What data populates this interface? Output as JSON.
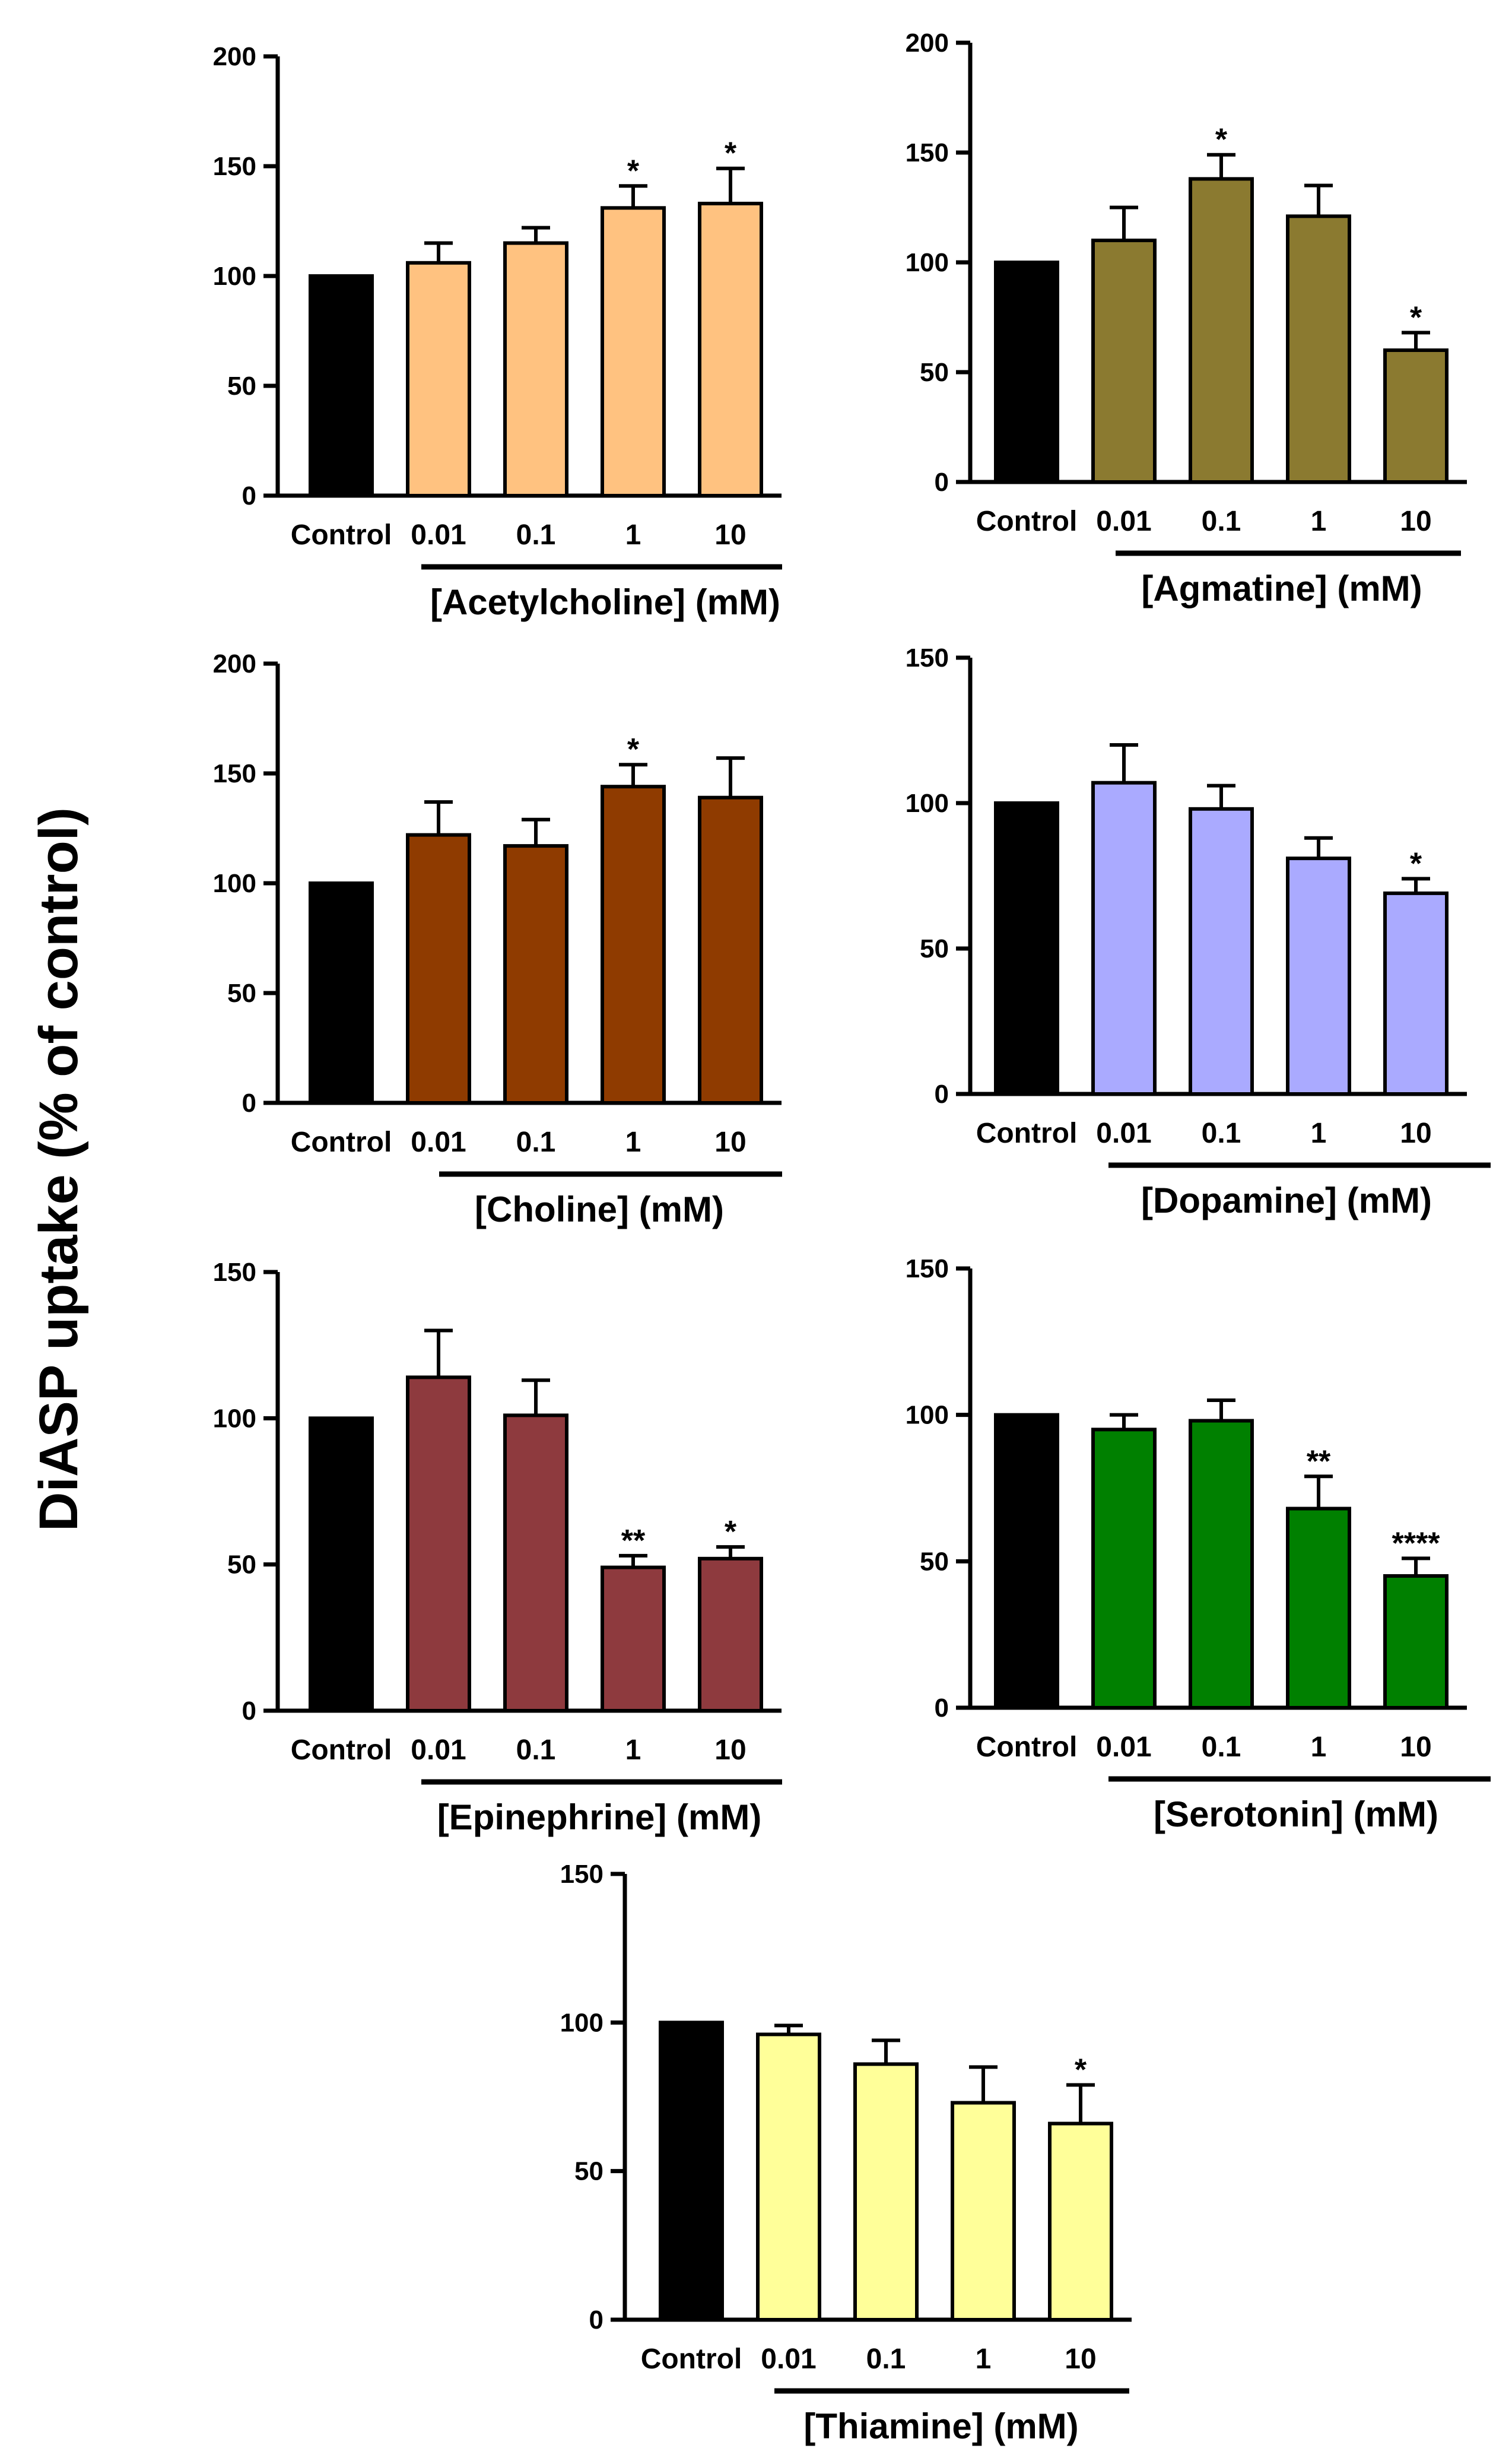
{
  "figure": {
    "ylabel": "DiASP uptake (% of control)"
  },
  "chart_data": [
    {
      "type": "bar",
      "xlabel": "[Acetylcholine] (mM)",
      "ylabel": "DiASP uptake (% of control)",
      "categories": [
        "Control",
        "0.01",
        "0.1",
        "1",
        "10"
      ],
      "values": [
        100,
        106,
        115,
        131,
        133
      ],
      "errors": [
        0,
        9,
        7,
        10,
        16
      ],
      "significance": [
        "",
        "",
        "",
        "*",
        "*"
      ],
      "colors": [
        "#000000",
        "#FFC280",
        "#FFC280",
        "#FFC280",
        "#FFC280"
      ],
      "ylim": [
        0,
        200
      ],
      "yticks": [
        0,
        50,
        100,
        150,
        200
      ]
    },
    {
      "type": "bar",
      "xlabel": "[Agmatine] (mM)",
      "ylabel": "DiASP uptake (% of control)",
      "categories": [
        "Control",
        "0.01",
        "0.1",
        "1",
        "10"
      ],
      "values": [
        100,
        110,
        138,
        121,
        60
      ],
      "errors": [
        0,
        15,
        11,
        14,
        8
      ],
      "significance": [
        "",
        "",
        "*",
        "",
        "*"
      ],
      "colors": [
        "#000000",
        "#8B7A30",
        "#8B7A30",
        "#8B7A30",
        "#8B7A30"
      ],
      "ylim": [
        0,
        200
      ],
      "yticks": [
        0,
        50,
        100,
        150,
        200
      ]
    },
    {
      "type": "bar",
      "xlabel": "[Choline] (mM)",
      "ylabel": "DiASP uptake (% of control)",
      "categories": [
        "Control",
        "0.01",
        "0.1",
        "1",
        "10"
      ],
      "values": [
        100,
        122,
        117,
        144,
        139
      ],
      "errors": [
        0,
        15,
        12,
        10,
        18
      ],
      "significance": [
        "",
        "",
        "",
        "*",
        ""
      ],
      "colors": [
        "#000000",
        "#8F3B00",
        "#8F3B00",
        "#8F3B00",
        "#8F3B00"
      ],
      "ylim": [
        0,
        200
      ],
      "yticks": [
        0,
        50,
        100,
        150,
        200
      ]
    },
    {
      "type": "bar",
      "xlabel": "[Dopamine] (mM)",
      "ylabel": "DiASP uptake (% of control)",
      "categories": [
        "Control",
        "0.01",
        "0.1",
        "1",
        "10"
      ],
      "values": [
        100,
        107,
        98,
        81,
        69
      ],
      "errors": [
        0,
        13,
        8,
        7,
        5
      ],
      "significance": [
        "",
        "",
        "",
        "",
        "*"
      ],
      "colors": [
        "#000000",
        "#AAAAFF",
        "#AAAAFF",
        "#AAAAFF",
        "#AAAAFF"
      ],
      "ylim": [
        0,
        150
      ],
      "yticks": [
        0,
        50,
        100,
        150
      ]
    },
    {
      "type": "bar",
      "xlabel": "[Epinephrine] (mM)",
      "ylabel": "DiASP uptake (% of control)",
      "categories": [
        "Control",
        "0.01",
        "0.1",
        "1",
        "10"
      ],
      "values": [
        100,
        114,
        101,
        49,
        52
      ],
      "errors": [
        0,
        16,
        12,
        4,
        4
      ],
      "significance": [
        "",
        "",
        "",
        "**",
        "*"
      ],
      "colors": [
        "#000000",
        "#8E3A3E",
        "#8E3A3E",
        "#8E3A3E",
        "#8E3A3E"
      ],
      "ylim": [
        0,
        150
      ],
      "yticks": [
        0,
        50,
        100,
        150
      ]
    },
    {
      "type": "bar",
      "xlabel": "[Serotonin] (mM)",
      "ylabel": "DiASP uptake (% of control)",
      "categories": [
        "Control",
        "0.01",
        "0.1",
        "1",
        "10"
      ],
      "values": [
        100,
        95,
        98,
        68,
        45
      ],
      "errors": [
        0,
        5,
        7,
        11,
        6
      ],
      "significance": [
        "",
        "",
        "",
        "**",
        "****"
      ],
      "colors": [
        "#000000",
        "#008000",
        "#008000",
        "#008000",
        "#008000"
      ],
      "ylim": [
        0,
        150
      ],
      "yticks": [
        0,
        50,
        100,
        150
      ]
    },
    {
      "type": "bar",
      "xlabel": "[Thiamine] (mM)",
      "ylabel": "DiASP uptake (% of control)",
      "categories": [
        "Control",
        "0.01",
        "0.1",
        "1",
        "10"
      ],
      "values": [
        100,
        96,
        86,
        73,
        66
      ],
      "errors": [
        0,
        3,
        8,
        12,
        13
      ],
      "significance": [
        "",
        "",
        "",
        "",
        "*"
      ],
      "colors": [
        "#000000",
        "#FFFF99",
        "#FFFF99",
        "#FFFF99",
        "#FFFF99"
      ],
      "ylim": [
        0,
        150
      ],
      "yticks": [
        0,
        50,
        100,
        150
      ]
    }
  ]
}
